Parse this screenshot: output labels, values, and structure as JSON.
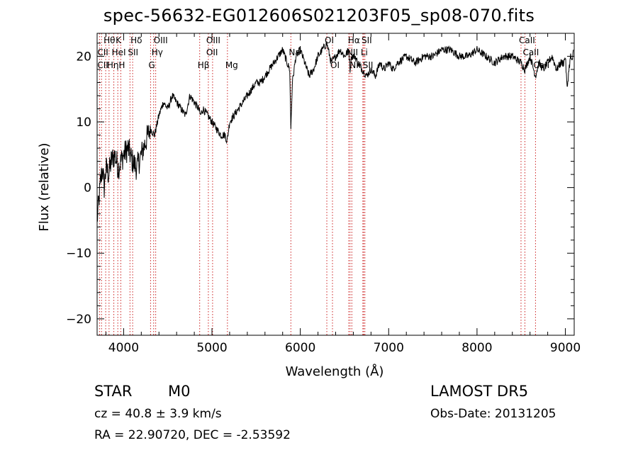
{
  "chart_data": {
    "type": "line",
    "title": "spec-56632-EG012606S021203F05_sp08-070.fits",
    "xlabel": "Wavelength (Å)",
    "ylabel": "Flux (relative)",
    "xlim": [
      3700,
      9100
    ],
    "ylim": [
      -22.5,
      23.5
    ],
    "xticks": [
      4000,
      5000,
      6000,
      7000,
      8000,
      9000
    ],
    "xticklabels": [
      "4000",
      "5000",
      "6000",
      "7000",
      "8000",
      "9000"
    ],
    "yticks": [
      -20,
      -10,
      0,
      10,
      20
    ],
    "yticklabels": [
      "−20",
      "−10",
      "0",
      "10",
      "20"
    ],
    "grid": false,
    "legend": "none",
    "series": [
      {
        "color": "#000000",
        "x": [
          3700,
          3720,
          3740,
          3760,
          3780,
          3800,
          3830,
          3860,
          3900,
          3940,
          3970,
          4000,
          4050,
          4100,
          4150,
          4200,
          4250,
          4300,
          4350,
          4400,
          4450,
          4500,
          4550,
          4600,
          4650,
          4700,
          4750,
          4800,
          4850,
          4870,
          4900,
          4950,
          5000,
          5050,
          5100,
          5150,
          5170,
          5200,
          5250,
          5300,
          5350,
          5400,
          5450,
          5500,
          5550,
          5600,
          5650,
          5700,
          5750,
          5800,
          5850,
          5880,
          5893,
          5910,
          5950,
          6000,
          6050,
          6100,
          6150,
          6200,
          6250,
          6300,
          6350,
          6400,
          6450,
          6500,
          6550,
          6563,
          6580,
          6620,
          6650,
          6700,
          6750,
          6800,
          6850,
          6900,
          6950,
          7000,
          7050,
          7100,
          7200,
          7300,
          7400,
          7500,
          7600,
          7700,
          7800,
          7900,
          8000,
          8100,
          8200,
          8300,
          8400,
          8500,
          8542,
          8600,
          8662,
          8700,
          8750,
          8800,
          8850,
          8900,
          8950,
          8980,
          9000,
          9020,
          9040,
          9060,
          9080,
          9090
        ],
        "y": [
          -5,
          -2,
          1,
          3,
          0,
          3,
          2,
          4,
          5,
          3,
          4,
          5,
          6,
          4,
          3,
          5,
          7,
          9,
          8,
          11,
          13,
          12,
          14,
          13,
          12,
          11,
          14,
          13,
          12,
          11,
          12,
          11,
          10,
          9,
          8,
          8,
          7,
          10,
          11,
          12,
          13,
          14,
          15,
          16,
          16,
          17,
          18,
          19,
          20,
          21,
          19,
          18,
          9,
          16,
          20,
          21,
          19,
          17,
          18,
          20,
          21,
          22,
          19,
          20,
          21,
          20,
          21,
          18,
          20,
          20,
          19,
          18,
          17,
          18,
          17,
          19,
          18,
          19,
          18,
          19,
          20,
          19,
          20,
          20,
          21,
          21,
          20,
          20,
          21,
          20,
          19,
          20,
          20,
          19,
          18,
          20,
          17,
          19,
          18,
          19,
          20,
          18,
          19,
          19,
          20,
          15,
          18,
          20,
          19,
          21
        ]
      }
    ],
    "annotations": [
      {
        "label": "Hθ",
        "x": 3797,
        "row": 1
      },
      {
        "label": "K",
        "x": 3934,
        "row": 1
      },
      {
        "label": "Hδ",
        "x": 4102,
        "row": 1
      },
      {
        "label": "OIII",
        "x": 4363,
        "row": 1
      },
      {
        "label": "OIII",
        "x": 4959,
        "row": 1
      },
      {
        "label": "OI",
        "x": 6300,
        "row": 1
      },
      {
        "label": "Hα",
        "x": 6563,
        "row": 1
      },
      {
        "label": "SII",
        "x": 6717,
        "row": 1
      },
      {
        "label": "CaII",
        "x": 8498,
        "row": 1
      },
      {
        "label": "CII",
        "x": 3727,
        "row": 2
      },
      {
        "label": "HeI",
        "x": 3889,
        "row": 2
      },
      {
        "label": "SII",
        "x": 4072,
        "row": 2
      },
      {
        "label": "Hγ",
        "x": 4340,
        "row": 2
      },
      {
        "label": "OII",
        "x": 4959,
        "row": 2
      },
      {
        "label": "Na",
        "x": 5893,
        "row": 2
      },
      {
        "label": "NII",
        "x": 6548,
        "row": 2
      },
      {
        "label": "Li",
        "x": 6708,
        "row": 2
      },
      {
        "label": "CaII",
        "x": 8542,
        "row": 2
      },
      {
        "label": "CII",
        "x": 3727,
        "row": 3
      },
      {
        "label": "Hη",
        "x": 3835,
        "row": 3
      },
      {
        "label": "H",
        "x": 3968,
        "row": 3
      },
      {
        "label": "G",
        "x": 4305,
        "row": 3
      },
      {
        "label": "Hβ",
        "x": 4861,
        "row": 3
      },
      {
        "label": "Mg",
        "x": 5175,
        "row": 3
      },
      {
        "label": "OI",
        "x": 6364,
        "row": 3
      },
      {
        "label": "NII",
        "x": 6583,
        "row": 3
      },
      {
        "label": "SII",
        "x": 6731,
        "row": 3
      },
      {
        "label": "CaII",
        "x": 8662,
        "row": 3
      }
    ],
    "line_markers": [
      3727,
      3750,
      3797,
      3835,
      3889,
      3934,
      3968,
      4072,
      4102,
      4305,
      4340,
      4363,
      4861,
      4959,
      5007,
      5175,
      5893,
      6300,
      6364,
      6548,
      6563,
      6583,
      6708,
      6717,
      6731,
      8498,
      8542,
      8662
    ]
  },
  "info": {
    "object_class": "STAR",
    "subclass": "M0",
    "survey": "LAMOST DR5",
    "cz": "cz = 40.8 ± 3.9 km/s",
    "obs_date": "Obs-Date: 20131205",
    "radec": "RA =  22.90720, DEC =  -2.53592"
  }
}
